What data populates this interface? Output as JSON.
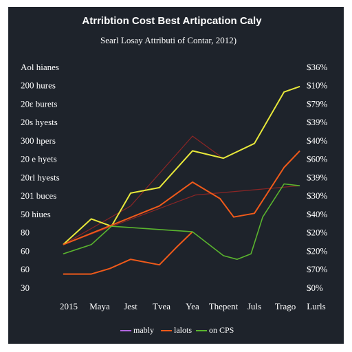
{
  "chart_data": {
    "type": "line",
    "title": "Atrribtion Cost Best Artipcation Caly",
    "subtitle": "Searl Losay Attributi of Contar, 2012)",
    "xlim": [
      0,
      8
    ],
    "xticks": [
      {
        "value": 0,
        "label": "2015"
      },
      {
        "value": 1,
        "label": "Maya"
      },
      {
        "value": 2,
        "label": "Jest"
      },
      {
        "value": 3,
        "label": "Tvea"
      },
      {
        "value": 4,
        "label": "Yea"
      },
      {
        "value": 5,
        "label": "Thepent"
      },
      {
        "value": 6,
        "label": "Juls"
      },
      {
        "value": 7,
        "label": "Trago"
      },
      {
        "value": 8,
        "label": "Lurls"
      }
    ],
    "ylim": [
      0,
      12
    ],
    "yticks": [
      {
        "value": 0,
        "label": "30"
      },
      {
        "value": 1,
        "label": "60"
      },
      {
        "value": 2,
        "label": "60"
      },
      {
        "value": 3,
        "label": "80"
      },
      {
        "value": 4,
        "label": "50 hiues"
      },
      {
        "value": 5,
        "label": "201 buces"
      },
      {
        "value": 6,
        "label": "20rl hyests"
      },
      {
        "value": 7,
        "label": "20 e hyets"
      },
      {
        "value": 8,
        "label": "300 hpers"
      },
      {
        "value": 9,
        "label": "20s hyests"
      },
      {
        "value": 10,
        "label": "20ε burets"
      },
      {
        "value": 11,
        "label": "200 hures"
      },
      {
        "value": 12,
        "label": "Aol hianes"
      }
    ],
    "y2lim": [
      0,
      12
    ],
    "y2ticks": [
      {
        "value": 0,
        "label": "$0%"
      },
      {
        "value": 1,
        "label": "$70%"
      },
      {
        "value": 2,
        "label": "$20%"
      },
      {
        "value": 3,
        "label": "$20%"
      },
      {
        "value": 4,
        "label": "$40%"
      },
      {
        "value": 5,
        "label": "$30%"
      },
      {
        "value": 6,
        "label": "$39%"
      },
      {
        "value": 7,
        "label": "$60%"
      },
      {
        "value": 8,
        "label": "$40%"
      },
      {
        "value": 9,
        "label": "$39%"
      },
      {
        "value": 10,
        "label": "$79%"
      },
      {
        "value": 11,
        "label": "$10%"
      },
      {
        "value": 12,
        "label": "$36%"
      }
    ],
    "legend": [
      {
        "label": "mably",
        "color": "#b266e0"
      },
      {
        "label": "lalots",
        "color": "#f05a1a"
      },
      {
        "label": "on CPS",
        "color": "#5ab52e"
      }
    ],
    "series": [
      {
        "color": "#8b2525",
        "width": 1.2,
        "x": [
          -0.18,
          2,
          4,
          4.9
        ],
        "values": [
          2.4,
          4.5,
          8.3,
          7.2
        ]
      },
      {
        "color": "#8b2525",
        "width": 1.2,
        "x": [
          -0.18,
          4.1,
          7.47
        ],
        "values": [
          2.4,
          5.1,
          5.6
        ]
      },
      {
        "color": "#e8e83a",
        "width": 2,
        "x": [
          -0.18,
          0.73,
          1.38,
          2,
          2.93,
          4,
          5,
          6,
          6.96,
          7.47
        ],
        "values": [
          2.4,
          3.8,
          3.4,
          5.2,
          5.5,
          7.5,
          7.1,
          7.9,
          10.7,
          11.0
        ]
      },
      {
        "color": "#f05a1a",
        "width": 2,
        "x": [
          -0.18,
          2.93,
          4,
          4.89,
          5.33,
          6,
          6.96,
          7.47
        ],
        "values": [
          2.4,
          4.5,
          5.8,
          4.9,
          3.9,
          4.1,
          6.6,
          7.5
        ]
      },
      {
        "color": "#f05a1a",
        "width": 2,
        "x": [
          -0.18,
          0.73,
          1.33,
          2,
          2.93,
          3.51,
          4
        ],
        "values": [
          0.8,
          0.8,
          1.1,
          1.6,
          1.3,
          2.3,
          3.1
        ]
      },
      {
        "color": "#5ab52e",
        "width": 1.6,
        "x": [
          -0.18,
          0.73,
          1.38,
          4,
          5,
          5.44,
          5.89,
          6.27,
          6.96,
          7.47
        ],
        "values": [
          1.9,
          2.4,
          3.4,
          3.1,
          1.8,
          1.6,
          1.9,
          3.9,
          5.7,
          5.6
        ]
      }
    ]
  }
}
